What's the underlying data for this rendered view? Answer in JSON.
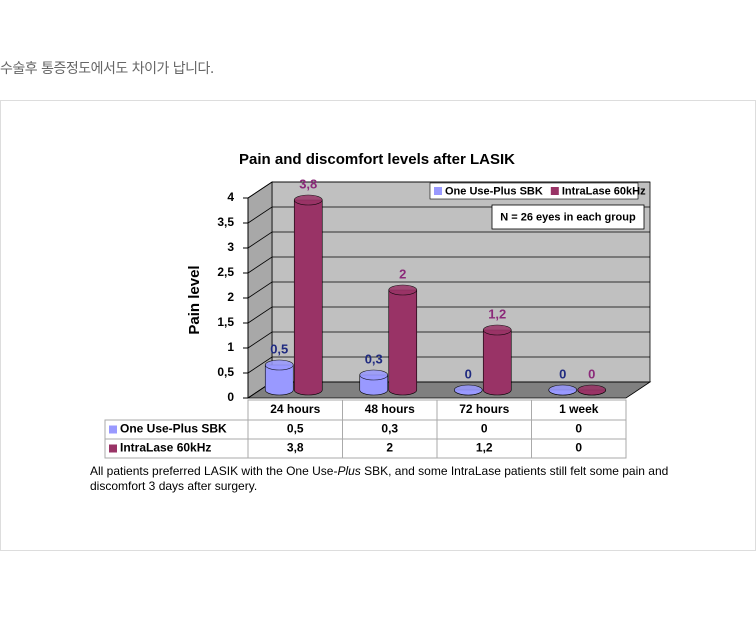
{
  "header": {
    "text": "수술후 통증정도에서도 차이가 납니다."
  },
  "chart_data": {
    "type": "bar3d",
    "title": "Pain and discomfort levels after LASIK",
    "y_label": "Pain level",
    "annotation": "N = 26 eyes in each group",
    "categories": [
      "24 hours",
      "48 hours",
      "72 hours",
      "1 week"
    ],
    "series": [
      {
        "name": "One Use-Plus SBK",
        "color": "#9999ff",
        "label_color": "#1f2a80",
        "values": [
          0.5,
          0.3,
          0,
          0
        ],
        "value_labels": [
          "0,5",
          "0,3",
          "0",
          "0"
        ]
      },
      {
        "name": "IntraLase 60kHz",
        "color": "#993366",
        "label_color": "#8b2a7a",
        "values": [
          3.8,
          2,
          1.2,
          0
        ],
        "value_labels": [
          "3,8",
          "2",
          "1,2",
          "0"
        ]
      }
    ],
    "ylim": [
      0,
      4
    ],
    "yticks": [
      0,
      {
        "value": 0.5,
        "label": "0,5"
      },
      1,
      {
        "value": 1.5,
        "label": "1,5"
      },
      2,
      {
        "value": 2.5,
        "label": "2,5"
      },
      3,
      {
        "value": 3.5,
        "label": "3,5"
      },
      4
    ],
    "grid": true,
    "legend": "top-right"
  },
  "caption": [
    "All patients preferred LASIK with the One Use-",
    "Plus",
    " SBK, and some IntraLase patients still felt some pain and discomfort 3 days after surgery."
  ]
}
